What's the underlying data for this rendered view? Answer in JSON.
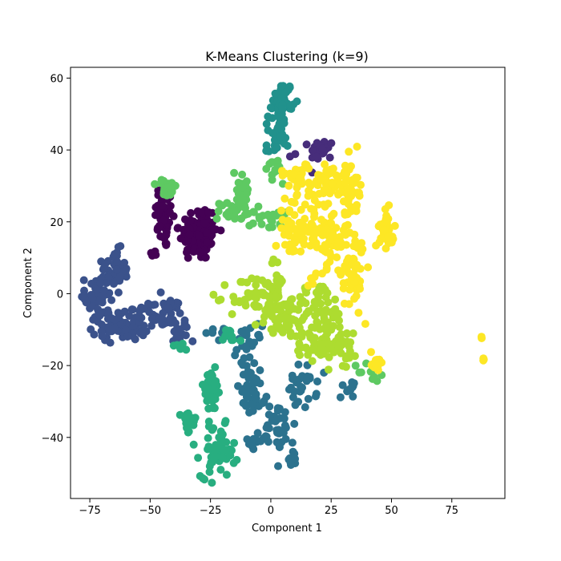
{
  "chart_data": {
    "type": "scatter",
    "title": "K-Means Clustering (k=9)",
    "xlabel": "Component 1",
    "ylabel": "Component 2",
    "xlim": [
      -83,
      97
    ],
    "ylim": [
      -57,
      63
    ],
    "xticks": [
      -75,
      -50,
      -25,
      0,
      25,
      50,
      75
    ],
    "yticks": [
      -40,
      -20,
      0,
      20,
      40,
      60
    ],
    "grid": false,
    "legend": "none",
    "marker_size": 5,
    "clusters": [
      {
        "id": 0,
        "color": "#440154",
        "blobs": [
          {
            "cx": -44,
            "cy": 22,
            "sx": 2,
            "sy": 5,
            "n": 60
          },
          {
            "cx": -30,
            "cy": 17,
            "sx": 4,
            "sy": 4,
            "n": 110
          },
          {
            "cx": -48,
            "cy": 11,
            "sx": 1,
            "sy": 1,
            "n": 6
          }
        ]
      },
      {
        "id": 1,
        "color": "#472d7b",
        "blobs": [
          {
            "cx": 21,
            "cy": 40,
            "sx": 2.5,
            "sy": 1.5,
            "n": 20
          },
          {
            "cx": 9,
            "cy": 38,
            "sx": 0.7,
            "sy": 0.7,
            "n": 2
          }
        ]
      },
      {
        "id": 2,
        "color": "#3b528b",
        "blobs": [
          {
            "cx": -65,
            "cy": 6,
            "sx": 3,
            "sy": 3,
            "n": 50
          },
          {
            "cx": -72,
            "cy": -1,
            "sx": 2.5,
            "sy": 4,
            "n": 45
          },
          {
            "cx": -62,
            "cy": -9,
            "sx": 6,
            "sy": 2,
            "n": 70
          },
          {
            "cx": -45,
            "cy": -6,
            "sx": 5,
            "sy": 2.5,
            "n": 40
          },
          {
            "cx": -38,
            "cy": -11,
            "sx": 2,
            "sy": 2,
            "n": 15
          },
          {
            "cx": -53,
            "cy": -4,
            "sx": 2,
            "sy": 1,
            "n": 10
          }
        ]
      },
      {
        "id": 3,
        "color": "#2c728e",
        "blobs": [
          {
            "cx": -9,
            "cy": -15,
            "sx": 2.5,
            "sy": 3,
            "n": 30
          },
          {
            "cx": -8,
            "cy": -28,
            "sx": 3.5,
            "sy": 3,
            "n": 35
          },
          {
            "cx": 3,
            "cy": -37,
            "sx": 3.5,
            "sy": 4,
            "n": 40
          },
          {
            "cx": 13,
            "cy": -26,
            "sx": 3,
            "sy": 3,
            "n": 30
          },
          {
            "cx": 32,
            "cy": -26,
            "sx": 1.5,
            "sy": 1.5,
            "n": 12
          },
          {
            "cx": 9,
            "cy": -46,
            "sx": 1,
            "sy": 1,
            "n": 8
          },
          {
            "cx": -22,
            "cy": -11,
            "sx": 3,
            "sy": 1,
            "n": 8
          },
          {
            "cx": -7,
            "cy": -41,
            "sx": 2,
            "sy": 1.5,
            "n": 10
          }
        ]
      },
      {
        "id": 4,
        "color": "#21918c",
        "blobs": [
          {
            "cx": 5,
            "cy": 54,
            "sx": 2,
            "sy": 2.5,
            "n": 40
          },
          {
            "cx": 3,
            "cy": 46,
            "sx": 2,
            "sy": 2,
            "n": 18
          },
          {
            "cx": 2,
            "cy": 41,
            "sx": 2,
            "sy": 1.5,
            "n": 15
          }
        ]
      },
      {
        "id": 5,
        "color": "#28ae80",
        "blobs": [
          {
            "cx": -34,
            "cy": -36,
            "sx": 1.5,
            "sy": 2,
            "n": 25
          },
          {
            "cx": -25,
            "cy": -27,
            "sx": 2.5,
            "sy": 3,
            "n": 35
          },
          {
            "cx": -22,
            "cy": -44,
            "sx": 3.5,
            "sy": 3.5,
            "n": 60
          },
          {
            "cx": -17,
            "cy": -13,
            "sx": 2,
            "sy": 2,
            "n": 12
          },
          {
            "cx": -37,
            "cy": -14,
            "sx": 1.5,
            "sy": 1,
            "n": 6
          }
        ]
      },
      {
        "id": 6,
        "color": "#5ec962",
        "blobs": [
          {
            "cx": -43,
            "cy": 29,
            "sx": 2,
            "sy": 1.5,
            "n": 20
          },
          {
            "cx": -12,
            "cy": 30,
            "sx": 2,
            "sy": 3,
            "n": 25
          },
          {
            "cx": -14,
            "cy": 23,
            "sx": 4,
            "sy": 2,
            "n": 30
          },
          {
            "cx": 0,
            "cy": 22,
            "sx": 3,
            "sy": 2.5,
            "n": 20
          },
          {
            "cx": 2,
            "cy": 35,
            "sx": 2,
            "sy": 1.5,
            "n": 12
          },
          {
            "cx": 42,
            "cy": -22,
            "sx": 3,
            "sy": 1.5,
            "n": 15
          }
        ]
      },
      {
        "id": 7,
        "color": "#addc30",
        "blobs": [
          {
            "cx": 3,
            "cy": 6,
            "sx": 1.5,
            "sy": 4,
            "n": 15
          },
          {
            "cx": -5,
            "cy": -1,
            "sx": 6,
            "sy": 3,
            "n": 60
          },
          {
            "cx": 5,
            "cy": -7,
            "sx": 5,
            "sy": 3,
            "n": 50
          },
          {
            "cx": 20,
            "cy": -3,
            "sx": 5,
            "sy": 3,
            "n": 50
          },
          {
            "cx": 20,
            "cy": -13,
            "sx": 5,
            "sy": 3,
            "n": 45
          },
          {
            "cx": 30,
            "cy": -14,
            "sx": 3,
            "sy": 3,
            "n": 30
          }
        ]
      },
      {
        "id": 8,
        "color": "#fde725",
        "blobs": [
          {
            "cx": 10,
            "cy": 33,
            "sx": 3,
            "sy": 1.5,
            "n": 25
          },
          {
            "cx": 23,
            "cy": 31,
            "sx": 4,
            "sy": 3,
            "n": 50
          },
          {
            "cx": 33,
            "cy": 28,
            "sx": 2.5,
            "sy": 5,
            "n": 55
          },
          {
            "cx": 10,
            "cy": 18,
            "sx": 4,
            "sy": 4,
            "n": 60
          },
          {
            "cx": 23,
            "cy": 15,
            "sx": 4,
            "sy": 4,
            "n": 60
          },
          {
            "cx": 34,
            "cy": 6,
            "sx": 2.5,
            "sy": 5,
            "n": 55
          },
          {
            "cx": 48,
            "cy": 18,
            "sx": 1.5,
            "sy": 2.5,
            "n": 35
          },
          {
            "cx": 43,
            "cy": -19,
            "sx": 1,
            "sy": 2,
            "n": 15
          },
          {
            "cx": 17,
            "cy": 3,
            "sx": 1,
            "sy": 2,
            "n": 6
          },
          {
            "cx": 87.5,
            "cy": -12,
            "sx": 0.2,
            "sy": 0.3,
            "n": 2
          },
          {
            "cx": 88,
            "cy": -18.5,
            "sx": 0.2,
            "sy": 0.2,
            "n": 3
          }
        ]
      }
    ]
  }
}
